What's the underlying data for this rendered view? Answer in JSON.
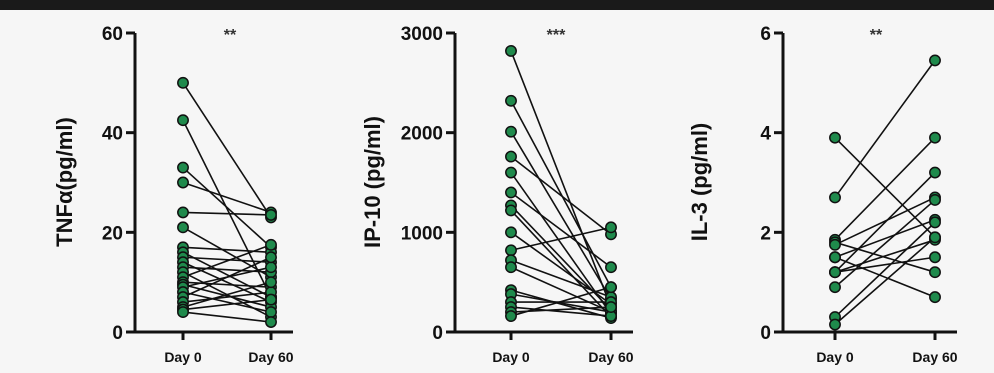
{
  "colors": {
    "marker_fill": "#1f8a4c",
    "ink": "#111111",
    "top_bar": "#1a1a1a",
    "background": "#f6f6f6"
  },
  "chart_data": [
    {
      "type": "scatter",
      "subtype": "paired-before-after",
      "ylabel": "TNFα(pg/ml)",
      "categories": [
        "Day 0",
        "Day 60"
      ],
      "annotation": "**",
      "ylim": [
        0,
        60
      ],
      "yticks": [
        "0",
        "20",
        "40",
        "60"
      ],
      "yticks_values": [
        0,
        20,
        40,
        60
      ],
      "pairs": [
        [
          50,
          23
        ],
        [
          42.5,
          7
        ],
        [
          33,
          17
        ],
        [
          30,
          24
        ],
        [
          24,
          23.5
        ],
        [
          21,
          11
        ],
        [
          17,
          16
        ],
        [
          16,
          7
        ],
        [
          15,
          14
        ],
        [
          14,
          6
        ],
        [
          13,
          12
        ],
        [
          12,
          3
        ],
        [
          11,
          17.5
        ],
        [
          10,
          9
        ],
        [
          9.5,
          5
        ],
        [
          9,
          13
        ],
        [
          8,
          4
        ],
        [
          7,
          15
        ],
        [
          6,
          8
        ],
        [
          5,
          10
        ],
        [
          4.5,
          6.5
        ],
        [
          4,
          2
        ]
      ]
    },
    {
      "type": "scatter",
      "subtype": "paired-before-after",
      "ylabel": "IP-10 (pg/ml)",
      "categories": [
        "Day 0",
        "Day 60"
      ],
      "annotation": "***",
      "ylim": [
        0,
        3000
      ],
      "yticks": [
        "0",
        "1000",
        "2000",
        "3000"
      ],
      "yticks_values": [
        0,
        1000,
        2000,
        3000
      ],
      "pairs": [
        [
          2820,
          250
        ],
        [
          2320,
          450
        ],
        [
          2010,
          330
        ],
        [
          1760,
          980
        ],
        [
          1600,
          180
        ],
        [
          1400,
          650
        ],
        [
          1270,
          220
        ],
        [
          1220,
          150
        ],
        [
          1000,
          280
        ],
        [
          820,
          1050
        ],
        [
          720,
          350
        ],
        [
          650,
          200
        ],
        [
          420,
          140
        ],
        [
          380,
          200
        ],
        [
          300,
          300
        ],
        [
          250,
          160
        ],
        [
          200,
          250
        ],
        [
          160,
          450
        ]
      ]
    },
    {
      "type": "scatter",
      "subtype": "paired-before-after",
      "ylabel": "IL-3 (pg/ml)",
      "categories": [
        "Day 0",
        "Day 60"
      ],
      "annotation": "**",
      "ylim": [
        0,
        6
      ],
      "yticks": [
        "0",
        "2",
        "4",
        "6"
      ],
      "yticks_values": [
        0,
        2,
        4,
        6
      ],
      "pairs": [
        [
          3.9,
          1.9
        ],
        [
          2.7,
          5.45
        ],
        [
          1.85,
          3.9
        ],
        [
          1.8,
          1.2
        ],
        [
          1.75,
          2.7
        ],
        [
          1.5,
          2.25
        ],
        [
          1.5,
          0.7
        ],
        [
          1.2,
          3.2
        ],
        [
          1.2,
          1.85
        ],
        [
          1.2,
          1.5
        ],
        [
          0.9,
          2.65
        ],
        [
          0.3,
          2.2
        ],
        [
          0.15,
          1.9
        ]
      ]
    }
  ]
}
